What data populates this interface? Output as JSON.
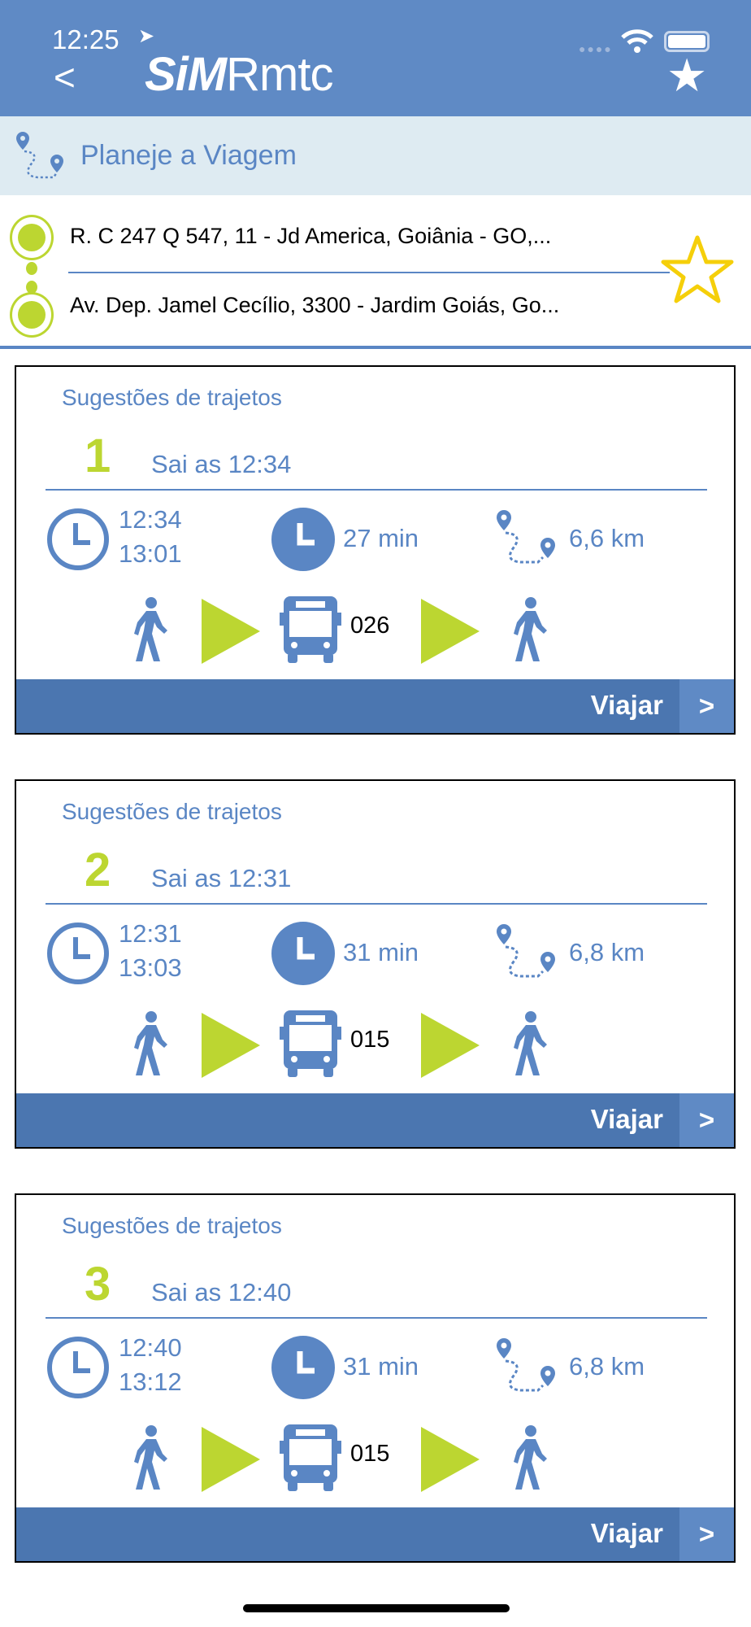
{
  "status_bar": {
    "time": "12:25"
  },
  "header": {
    "logo_bold": "SiM",
    "logo_light": "Rmtc",
    "back": "<"
  },
  "planner": {
    "title": "Planeje a Viagem",
    "origin": "R. C 247 Q 547, 11 - Jd America, Goiânia - GO,...",
    "destination": "Av. Dep. Jamel Cecílio, 3300 - Jardim Goiás, Go..."
  },
  "colors": {
    "primary": "#5f8ac5",
    "accent_green": "#bcd631",
    "star": "#f5cf0a",
    "footer": "#4b76b0"
  },
  "routes": [
    {
      "title": "Sugestões de trajetos",
      "number": "1",
      "departs": "Sai as 12:34",
      "start": "12:34",
      "end": "13:01",
      "duration": "27 min",
      "distance": "6,6 km",
      "line": "026",
      "action": "Viajar",
      "arrow": ">"
    },
    {
      "title": "Sugestões de trajetos",
      "number": "2",
      "departs": "Sai as 12:31",
      "start": "12:31",
      "end": "13:03",
      "duration": "31 min",
      "distance": "6,8 km",
      "line": "015",
      "action": "Viajar",
      "arrow": ">"
    },
    {
      "title": "Sugestões de trajetos",
      "number": "3",
      "departs": "Sai as 12:40",
      "start": "12:40",
      "end": "13:12",
      "duration": "31 min",
      "distance": "6,8 km",
      "line": "015",
      "action": "Viajar",
      "arrow": ">"
    }
  ]
}
